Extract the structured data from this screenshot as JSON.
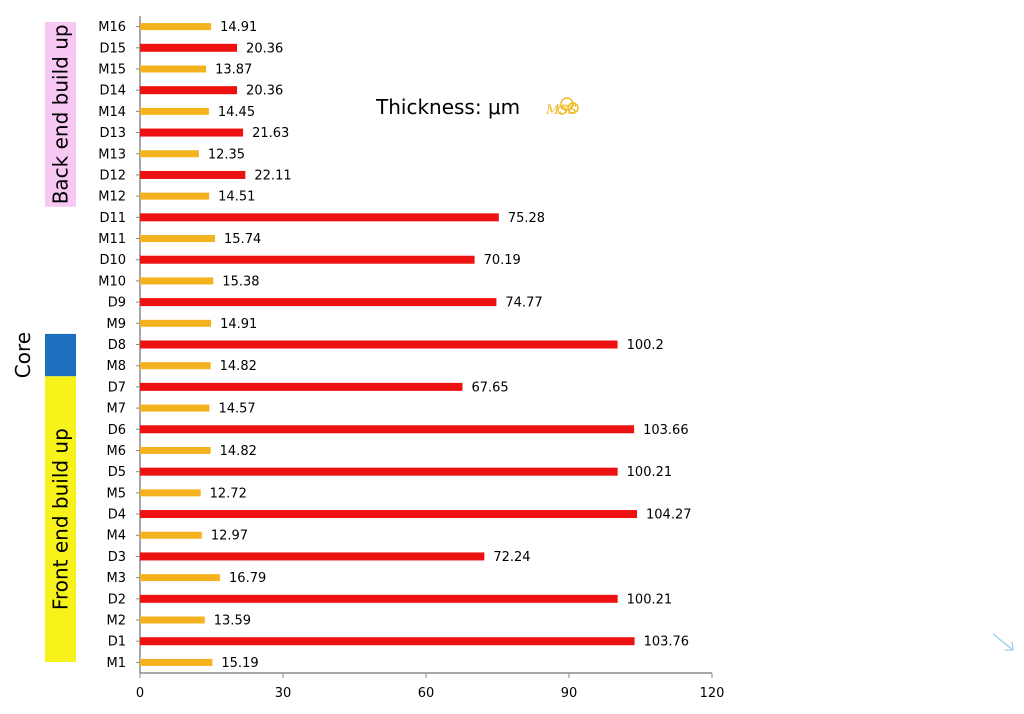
{
  "chart_data": {
    "type": "bar",
    "orientation": "horizontal",
    "title": "Thickness: μm",
    "logo": "MSS",
    "categories": [
      "M1",
      "D1",
      "M2",
      "D2",
      "M3",
      "D3",
      "M4",
      "D4",
      "M5",
      "D5",
      "M6",
      "D6",
      "M7",
      "D7",
      "M8",
      "D8",
      "M9",
      "D9",
      "M10",
      "D10",
      "M11",
      "D11",
      "M12",
      "D12",
      "M13",
      "D13",
      "M14",
      "D14",
      "M15",
      "D15",
      "M16"
    ],
    "values": [
      15.19,
      103.76,
      13.59,
      100.21,
      16.79,
      72.24,
      12.97,
      104.27,
      12.72,
      100.21,
      14.82,
      103.66,
      14.57,
      67.65,
      14.82,
      100.2,
      14.91,
      74.77,
      15.38,
      70.19,
      15.74,
      75.28,
      14.51,
      22.11,
      12.35,
      21.63,
      14.45,
      20.36,
      13.87,
      20.36,
      14.91
    ],
    "value_labels": [
      "15.19",
      "103.76",
      "13.59",
      "100.21",
      "16.79",
      "72.24",
      "12.97",
      "104.27",
      "12.72",
      "100.21",
      "14.82",
      "103.66",
      "14.57",
      "67.65",
      "14.82",
      "100.2",
      "14.91",
      "74.77",
      "15.38",
      "70.19",
      "15.74",
      "75.28",
      "14.51",
      "22.11",
      "12.35",
      "21.63",
      "14.45",
      "20.36",
      "13.87",
      "20.36",
      "14.91"
    ],
    "xlim": [
      0,
      120
    ],
    "xticks": [
      "0",
      "30",
      "60",
      "90",
      "120"
    ],
    "xtick_values": [
      0,
      30,
      60,
      90,
      120
    ],
    "colors": {
      "metal": "#f5b21f",
      "dielectric": "#ee1111"
    },
    "groups": [
      {
        "label": "Back end build up",
        "color": "#f8c8f4",
        "from": "M12",
        "to": "M16"
      },
      {
        "label": "",
        "color": "#1f6fbf",
        "from": "M8",
        "to": "D8"
      },
      {
        "label": "Front end build up",
        "color": "#f6f21a",
        "from": "M1",
        "to": "D7"
      }
    ],
    "core_label": "Core",
    "grid": false
  }
}
